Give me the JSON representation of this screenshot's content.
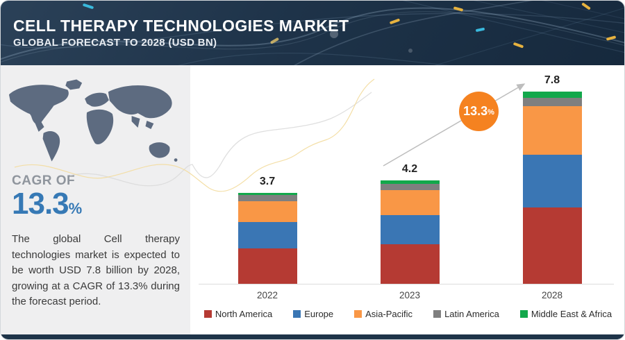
{
  "header": {
    "title": "CELL THERAPY TECHNOLOGIES MARKET",
    "subtitle": "GLOBAL FORECAST TO 2028 (USD BN)"
  },
  "sidebar": {
    "cagr_label": "CAGR OF",
    "cagr_value": "13.3",
    "cagr_unit": "%",
    "description": "The global Cell therapy technologies market is expected to be worth USD 7.8 billion by 2028, growing at a CAGR of 13.3% during the forecast period."
  },
  "badge": {
    "value": "13.3",
    "unit": "%"
  },
  "colors": {
    "header_navy": "#1e3349",
    "sidebar_bg": "#efeff0",
    "map_fill": "#5d6b80",
    "cagr_blue": "#3679b5",
    "badge_orange": "#f58220",
    "axis_gray": "#dcdcdc"
  },
  "chart_data": {
    "type": "bar",
    "stacked": true,
    "title": "Cell Therapy Technologies Market, Global Forecast to 2028 (USD BN)",
    "categories": [
      "2022",
      "2023",
      "2028"
    ],
    "totals": [
      3.7,
      4.2,
      7.8
    ],
    "series": [
      {
        "name": "North America",
        "color": "#b53a33",
        "values": [
          1.45,
          1.6,
          3.1
        ]
      },
      {
        "name": "Europe",
        "color": "#3a76b4",
        "values": [
          1.05,
          1.2,
          2.15
        ]
      },
      {
        "name": "Asia-Pacific",
        "color": "#f99746",
        "values": [
          0.85,
          1.0,
          1.95
        ]
      },
      {
        "name": "Latin America",
        "color": "#7f7f7f",
        "values": [
          0.25,
          0.25,
          0.35
        ]
      },
      {
        "name": "Middle East & Africa",
        "color": "#12a84b",
        "values": [
          0.1,
          0.15,
          0.25
        ]
      }
    ],
    "xlabel": "",
    "ylabel": "",
    "unit": "USD BN",
    "grid": false,
    "legend_position": "bottom",
    "annotation": {
      "text": "13.3%",
      "meaning": "CAGR arrow from 2023 bar to 2028 bar"
    }
  }
}
